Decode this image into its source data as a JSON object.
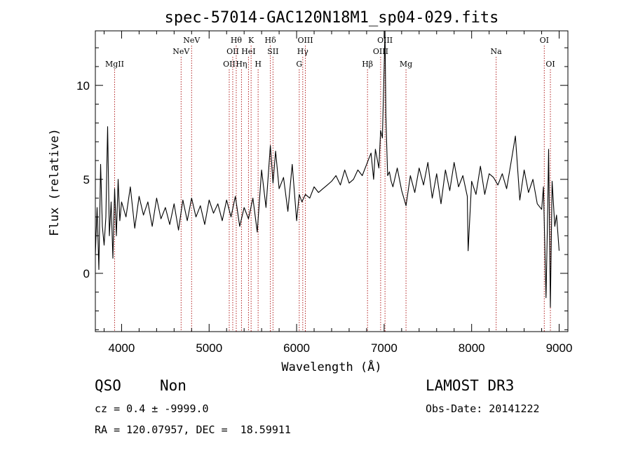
{
  "chart_data": {
    "type": "line",
    "title": "spec-57014-GAC120N18M1_sp04-029.fits",
    "xlabel": "Wavelength (Å)",
    "ylabel": "Flux (relative)",
    "xlim": [
      3700,
      9100
    ],
    "ylim": [
      -3.1,
      12.9
    ],
    "xticks": [
      4000,
      5000,
      6000,
      7000,
      8000,
      9000
    ],
    "yticks": [
      0,
      5,
      10
    ],
    "series": [
      {
        "name": "flux",
        "x": [
          3700,
          3720,
          3740,
          3760,
          3780,
          3800,
          3820,
          3840,
          3860,
          3880,
          3900,
          3920,
          3940,
          3960,
          3980,
          4000,
          4050,
          4100,
          4150,
          4200,
          4250,
          4300,
          4350,
          4400,
          4450,
          4500,
          4550,
          4600,
          4650,
          4700,
          4750,
          4800,
          4850,
          4900,
          4950,
          5000,
          5050,
          5100,
          5150,
          5200,
          5250,
          5300,
          5350,
          5400,
          5450,
          5500,
          5550,
          5600,
          5650,
          5700,
          5730,
          5760,
          5800,
          5850,
          5900,
          5950,
          6000,
          6030,
          6060,
          6100,
          6150,
          6200,
          6250,
          6300,
          6350,
          6400,
          6450,
          6500,
          6550,
          6600,
          6650,
          6700,
          6750,
          6800,
          6850,
          6880,
          6900,
          6940,
          6960,
          6980,
          7000,
          7010,
          7020,
          7030,
          7040,
          7060,
          7080,
          7100,
          7150,
          7200,
          7250,
          7300,
          7350,
          7400,
          7450,
          7500,
          7550,
          7600,
          7650,
          7700,
          7750,
          7800,
          7850,
          7900,
          7950,
          7960,
          8000,
          8050,
          8100,
          8150,
          8200,
          8250,
          8300,
          8350,
          8400,
          8450,
          8500,
          8550,
          8600,
          8650,
          8700,
          8750,
          8800,
          8820,
          8850,
          8870,
          8880,
          8900,
          8920,
          8950,
          8970,
          9000
        ],
        "y": [
          1.0,
          3.5,
          0.2,
          5.8,
          2.5,
          1.5,
          3.0,
          7.8,
          2.0,
          3.8,
          0.8,
          4.5,
          2.0,
          5.0,
          2.8,
          3.8,
          3.0,
          4.6,
          2.4,
          4.1,
          3.1,
          3.8,
          2.5,
          4.0,
          2.9,
          3.5,
          2.6,
          3.7,
          2.3,
          3.9,
          2.8,
          4.0,
          3.0,
          3.6,
          2.6,
          3.9,
          3.2,
          3.7,
          2.8,
          3.9,
          3.0,
          4.1,
          2.5,
          3.5,
          2.9,
          4.0,
          2.2,
          5.5,
          3.5,
          6.8,
          4.8,
          6.5,
          4.5,
          5.1,
          3.3,
          5.8,
          2.8,
          4.2,
          3.8,
          4.2,
          4.0,
          4.6,
          4.3,
          4.5,
          4.7,
          4.9,
          5.2,
          4.7,
          5.5,
          4.8,
          5.0,
          5.5,
          5.2,
          5.8,
          6.4,
          5.0,
          6.6,
          5.6,
          7.6,
          7.2,
          11.0,
          12.9,
          8.4,
          6.8,
          5.2,
          5.4,
          4.9,
          4.6,
          5.6,
          4.4,
          3.6,
          5.2,
          4.3,
          5.6,
          4.7,
          5.9,
          4.0,
          5.3,
          3.7,
          5.5,
          4.4,
          5.9,
          4.6,
          5.2,
          4.1,
          1.2,
          4.9,
          4.2,
          5.7,
          4.2,
          5.3,
          5.1,
          4.7,
          5.3,
          4.5,
          5.9,
          7.3,
          3.9,
          5.5,
          4.3,
          5.0,
          3.7,
          3.4,
          4.6,
          -1.3,
          3.6,
          6.6,
          -1.8,
          4.9,
          2.5,
          3.1,
          1.2
        ]
      }
    ],
    "lines": [
      {
        "name": "MgII",
        "wave": 3920,
        "row": 3
      },
      {
        "name": "NeV",
        "wave": 4680,
        "row": 2
      },
      {
        "name": "NeV",
        "wave": 4800,
        "row": 1
      },
      {
        "name": "OII",
        "wave": 5230,
        "row": 3
      },
      {
        "name": "OII",
        "wave": 5270,
        "row": 2
      },
      {
        "name": "Hθ",
        "wave": 5310,
        "row": 1
      },
      {
        "name": "Hη",
        "wave": 5370,
        "row": 3
      },
      {
        "name": "HeI",
        "wave": 5450,
        "row": 2
      },
      {
        "name": "K",
        "wave": 5480,
        "row": 1
      },
      {
        "name": "H",
        "wave": 5560,
        "row": 3
      },
      {
        "name": "Hδ",
        "wave": 5700,
        "row": 1
      },
      {
        "name": "SII",
        "wave": 5730,
        "row": 2
      },
      {
        "name": "G",
        "wave": 6030,
        "row": 3
      },
      {
        "name": "Hγ",
        "wave": 6070,
        "row": 2
      },
      {
        "name": "OIII",
        "wave": 6100,
        "row": 1
      },
      {
        "name": "Hβ",
        "wave": 6810,
        "row": 3
      },
      {
        "name": "OIII",
        "wave": 6960,
        "row": 2
      },
      {
        "name": "OIII",
        "wave": 7010,
        "row": 1
      },
      {
        "name": "Mg",
        "wave": 7250,
        "row": 3
      },
      {
        "name": "Na",
        "wave": 8280,
        "row": 2
      },
      {
        "name": "OI",
        "wave": 8830,
        "row": 1
      },
      {
        "name": "OI",
        "wave": 8900,
        "row": 3
      }
    ]
  },
  "info": {
    "class": "QSO",
    "subclass": "Non",
    "survey": "LAMOST DR3",
    "cz": "cz = 0.4 ± -9999.0",
    "obs_date": "Obs-Date: 20141222",
    "coords": "RA = 120.07957, DEC =  18.59911"
  },
  "colors": {
    "spectrum": "#000000",
    "line_marker": "#b22222",
    "axis": "#000000",
    "background": "#ffffff"
  }
}
